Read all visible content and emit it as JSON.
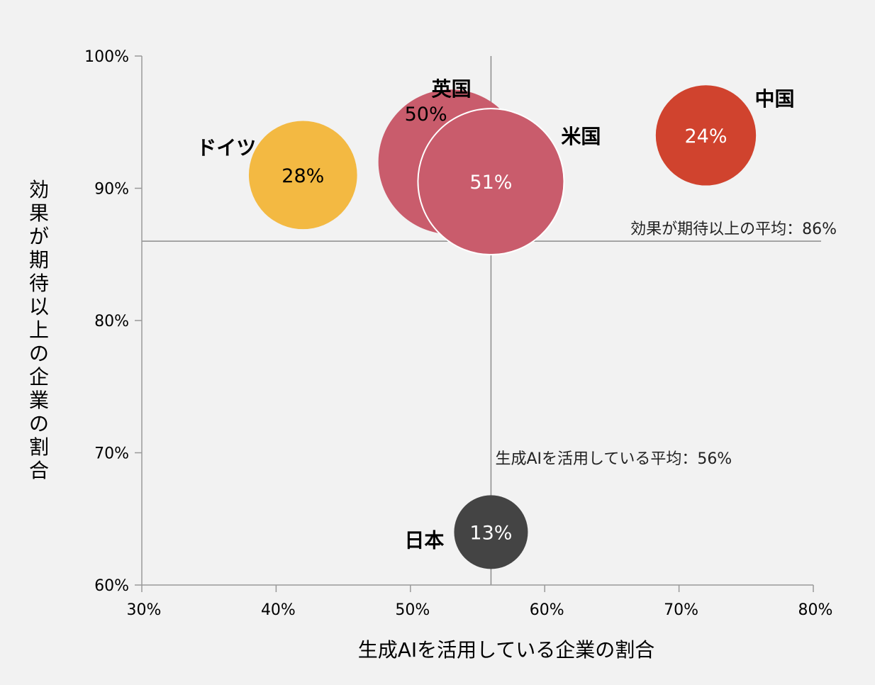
{
  "chart_data": {
    "type": "bubble",
    "xlabel": "生成AIを活用している企業の割合",
    "ylabel": "効果が期待以上の企業の割合",
    "xlim": [
      30,
      80
    ],
    "ylim": [
      60,
      100
    ],
    "x_ticks": [
      "30%",
      "40%",
      "50%",
      "60%",
      "70%",
      "80%"
    ],
    "y_ticks": [
      "60%",
      "70%",
      "80%",
      "90%",
      "100%"
    ],
    "grid": false,
    "reference_lines": {
      "x_average": {
        "value": 56,
        "label": "生成AIを活用している平均：56%"
      },
      "y_average": {
        "value": 86,
        "label": "効果が期待以上の平均：86%"
      }
    },
    "points": [
      {
        "country": "ドイツ",
        "x": 42,
        "y": 91,
        "size": 28,
        "value_label": "28%",
        "color": "#f3b942",
        "text_color": "#000000"
      },
      {
        "country": "英国",
        "x": 53,
        "y": 92,
        "size": 50,
        "value_label": "50%",
        "color": "#c95c6c",
        "text_color": "#000000"
      },
      {
        "country": "米国",
        "x": 56,
        "y": 90.5,
        "size": 51,
        "value_label": "51%",
        "color": "#c95c6c",
        "text_color": "#ffffff"
      },
      {
        "country": "中国",
        "x": 72,
        "y": 94,
        "size": 24,
        "value_label": "24%",
        "color": "#d0432e",
        "text_color": "#ffffff"
      },
      {
        "country": "日本",
        "x": 56,
        "y": 64,
        "size": 13,
        "value_label": "13%",
        "color": "#444444",
        "text_color": "#ffffff"
      }
    ]
  }
}
